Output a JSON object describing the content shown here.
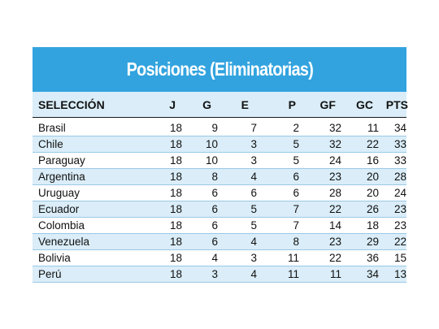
{
  "title": "Posiciones (Eliminatorias)",
  "headers": {
    "team": "SELECCIÓN",
    "j": "J",
    "g": "G",
    "e": "E",
    "p": "P",
    "gf": "GF",
    "gc": "GC",
    "pts": "PTS"
  },
  "rows": [
    {
      "team": "Brasil",
      "j": "18",
      "g": "9",
      "e": "7",
      "p": "2",
      "gf": "32",
      "gc": "11",
      "pts": "34"
    },
    {
      "team": "Chile",
      "j": "18",
      "g": "10",
      "e": "3",
      "p": "5",
      "gf": "32",
      "gc": "22",
      "pts": "33"
    },
    {
      "team": "Paraguay",
      "j": "18",
      "g": "10",
      "e": "3",
      "p": "5",
      "gf": "24",
      "gc": "16",
      "pts": "33"
    },
    {
      "team": "Argentina",
      "j": "18",
      "g": "8",
      "e": "4",
      "p": "6",
      "gf": "23",
      "gc": "20",
      "pts": "28"
    },
    {
      "team": "Uruguay",
      "j": "18",
      "g": "6",
      "e": "6",
      "p": "6",
      "gf": "28",
      "gc": "20",
      "pts": "24"
    },
    {
      "team": "Ecuador",
      "j": "18",
      "g": "6",
      "e": "5",
      "p": "7",
      "gf": "22",
      "gc": "26",
      "pts": "23"
    },
    {
      "team": "Colombia",
      "j": "18",
      "g": "6",
      "e": "5",
      "p": "7",
      "gf": "14",
      "gc": "18",
      "pts": "23"
    },
    {
      "team": "Venezuela",
      "j": "18",
      "g": "6",
      "e": "4",
      "p": "8",
      "gf": "23",
      "gc": "29",
      "pts": "22"
    },
    {
      "team": "Bolivia",
      "j": "18",
      "g": "4",
      "e": "3",
      "p": "11",
      "gf": "22",
      "gc": "36",
      "pts": "15"
    },
    {
      "team": "Perú",
      "j": "18",
      "g": "3",
      "e": "4",
      "p": "11",
      "gf": "11",
      "gc": "34",
      "pts": "13"
    }
  ],
  "colors": {
    "title_bar": "#32a3df",
    "stripe": "#daedf8",
    "row_rule": "#9ac9e6"
  }
}
